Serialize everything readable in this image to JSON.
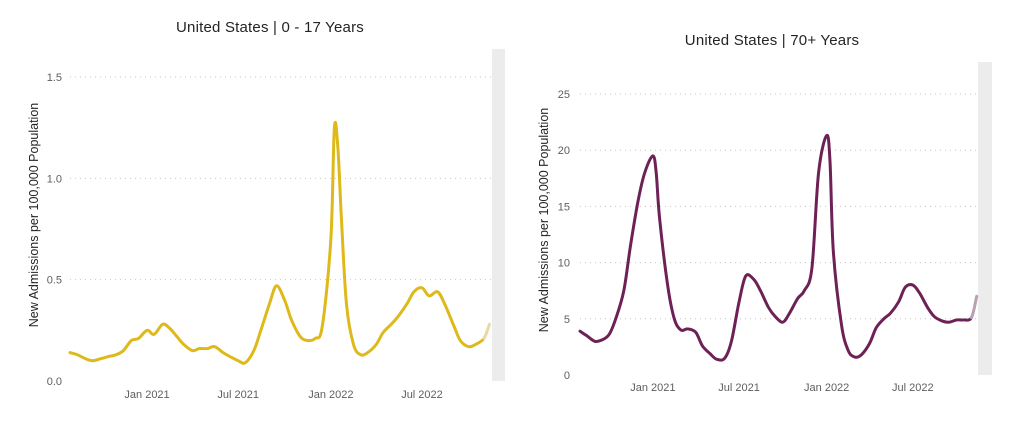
{
  "chart_data": [
    {
      "type": "line",
      "title": "United States | 0 - 17 Years",
      "xlabel": "",
      "ylabel": "New Admissions per 100,000 Population",
      "ylim": [
        0,
        1.5
      ],
      "yticks": [
        "0.0",
        "0.5",
        "1.0",
        "1.5"
      ],
      "ytick_values": [
        0,
        0.5,
        1.0,
        1.5
      ],
      "xlim": [
        "2020-08-01",
        "2022-11-19"
      ],
      "xticks": [
        "Jan 2021",
        "Jul 2021",
        "Jan 2022",
        "Jul 2022"
      ],
      "xtick_dates": [
        "2021-01-01",
        "2021-07-01",
        "2022-01-01",
        "2022-07-01"
      ],
      "grid": true,
      "color": "#DDB91A",
      "projected_color": "#E8D9A6",
      "series": [
        {
          "x": [
            "2020-08-01",
            "2020-08-15",
            "2020-09-01",
            "2020-09-15",
            "2020-10-01",
            "2020-10-15",
            "2020-11-01",
            "2020-11-15",
            "2020-12-01",
            "2020-12-15",
            "2021-01-01",
            "2021-01-15",
            "2021-02-01",
            "2021-02-15",
            "2021-03-01",
            "2021-03-15",
            "2021-04-01",
            "2021-04-15",
            "2021-05-01",
            "2021-05-15",
            "2021-06-01",
            "2021-06-15",
            "2021-07-01",
            "2021-07-15",
            "2021-08-01",
            "2021-08-15",
            "2021-09-01",
            "2021-09-15",
            "2021-10-01",
            "2021-10-15",
            "2021-11-01",
            "2021-11-15",
            "2021-12-01",
            "2021-12-15",
            "2022-01-01",
            "2022-01-08",
            "2022-01-15",
            "2022-01-22",
            "2022-02-01",
            "2022-02-15",
            "2022-03-01",
            "2022-03-15",
            "2022-04-01",
            "2022-04-15",
            "2022-05-01",
            "2022-05-15",
            "2022-06-01",
            "2022-06-15",
            "2022-07-01",
            "2022-07-15",
            "2022-08-01",
            "2022-08-15",
            "2022-09-01",
            "2022-09-15",
            "2022-10-01",
            "2022-10-15",
            "2022-11-01",
            "2022-11-12"
          ],
          "values": [
            0.14,
            0.13,
            0.11,
            0.1,
            0.11,
            0.12,
            0.13,
            0.15,
            0.2,
            0.21,
            0.25,
            0.23,
            0.28,
            0.26,
            0.22,
            0.18,
            0.15,
            0.16,
            0.16,
            0.17,
            0.14,
            0.12,
            0.1,
            0.09,
            0.15,
            0.25,
            0.38,
            0.47,
            0.4,
            0.3,
            0.22,
            0.2,
            0.21,
            0.27,
            0.7,
            1.25,
            1.15,
            0.8,
            0.38,
            0.18,
            0.13,
            0.14,
            0.18,
            0.24,
            0.28,
            0.32,
            0.38,
            0.44,
            0.46,
            0.42,
            0.44,
            0.38,
            0.28,
            0.2,
            0.17,
            0.18,
            0.21,
            0.28
          ]
        }
      ]
    },
    {
      "type": "line",
      "title": "United States | 70+ Years",
      "xlabel": "",
      "ylabel": "New Admissions per 100,000 Population",
      "ylim": [
        0,
        25
      ],
      "yticks": [
        "0",
        "5",
        "10",
        "15",
        "20",
        "25"
      ],
      "ytick_values": [
        0,
        5,
        10,
        15,
        20,
        25
      ],
      "xlim": [
        "2020-08-01",
        "2022-11-19"
      ],
      "xticks": [
        "Jan 2021",
        "Jul 2021",
        "Jan 2022",
        "Jul 2022"
      ],
      "xtick_dates": [
        "2021-01-01",
        "2021-07-01",
        "2022-01-01",
        "2022-07-01"
      ],
      "grid": true,
      "color": "#6D2155",
      "projected_color": "#B9A0B4",
      "series": [
        {
          "x": [
            "2020-08-01",
            "2020-08-15",
            "2020-09-01",
            "2020-09-15",
            "2020-10-01",
            "2020-10-15",
            "2020-11-01",
            "2020-11-15",
            "2020-12-01",
            "2020-12-15",
            "2021-01-01",
            "2021-01-08",
            "2021-01-15",
            "2021-02-01",
            "2021-02-15",
            "2021-03-01",
            "2021-03-15",
            "2021-04-01",
            "2021-04-15",
            "2021-05-01",
            "2021-05-15",
            "2021-06-01",
            "2021-06-15",
            "2021-07-01",
            "2021-07-15",
            "2021-08-01",
            "2021-08-15",
            "2021-09-01",
            "2021-09-15",
            "2021-10-01",
            "2021-10-15",
            "2021-11-01",
            "2021-11-15",
            "2021-12-01",
            "2021-12-15",
            "2022-01-01",
            "2022-01-08",
            "2022-01-15",
            "2022-02-01",
            "2022-02-15",
            "2022-03-01",
            "2022-03-15",
            "2022-04-01",
            "2022-04-15",
            "2022-05-01",
            "2022-05-15",
            "2022-06-01",
            "2022-06-15",
            "2022-07-01",
            "2022-07-15",
            "2022-08-01",
            "2022-08-15",
            "2022-09-01",
            "2022-09-15",
            "2022-10-01",
            "2022-10-15",
            "2022-11-01",
            "2022-11-12"
          ],
          "values": [
            3.9,
            3.5,
            3.0,
            3.1,
            3.6,
            5.0,
            7.5,
            11.5,
            15.5,
            18.0,
            19.5,
            18.0,
            14.0,
            8.0,
            5.0,
            4.0,
            4.1,
            3.8,
            2.6,
            1.9,
            1.4,
            1.5,
            3.0,
            6.5,
            8.8,
            8.5,
            7.5,
            6.0,
            5.2,
            4.7,
            5.5,
            6.8,
            7.5,
            9.5,
            18.0,
            21.3,
            19.0,
            11.0,
            4.5,
            2.2,
            1.6,
            1.8,
            2.8,
            4.2,
            5.0,
            5.5,
            6.5,
            7.8,
            8.0,
            7.3,
            6.0,
            5.2,
            4.8,
            4.7,
            4.9,
            4.9,
            5.1,
            7.0
          ]
        }
      ]
    }
  ]
}
